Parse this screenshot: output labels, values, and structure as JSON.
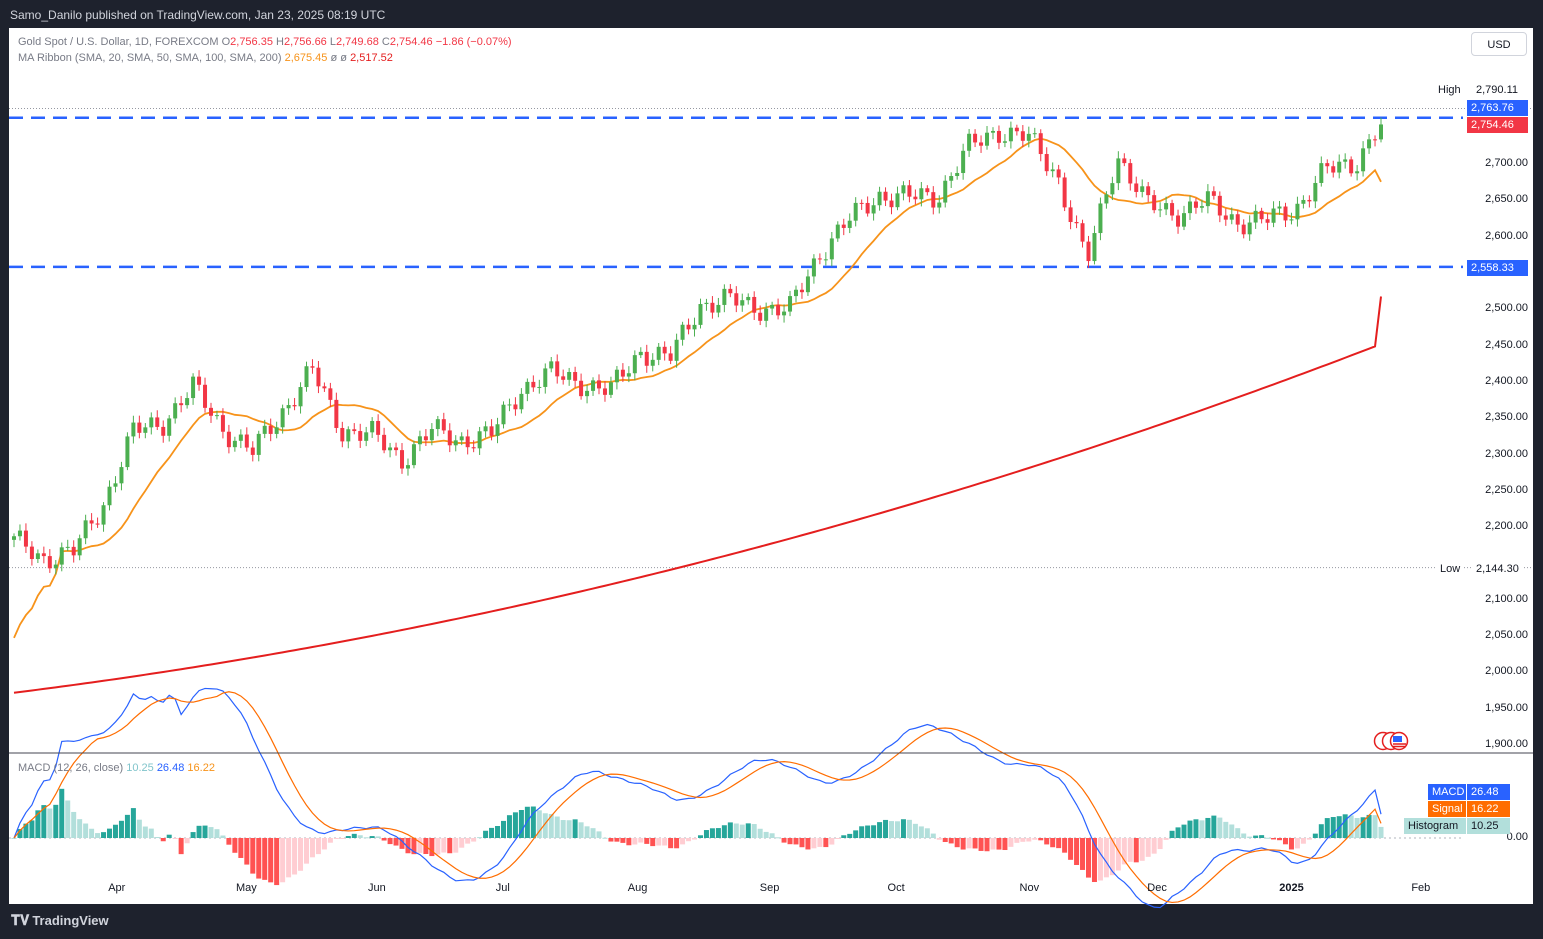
{
  "header": {
    "published_by": "Samo_Danilo published on TradingView.com, Jan 23, 2025 08:19 UTC"
  },
  "legend": {
    "symbol": "Gold Spot / U.S. Dollar, 1D, FOREXCOM",
    "o_label": "O",
    "o_val": "2,756.35",
    "h_label": "H",
    "h_val": "2,756.66",
    "l_label": "L",
    "l_val": "2,749.68",
    "c_label": "C",
    "c_val": "2,754.46",
    "change": "−1.86 (−0.07%)",
    "ma_title": "MA Ribbon (SMA, 20, SMA, 50, SMA, 100, SMA, 200)",
    "ma20": "2,675.45",
    "ma50": "ø",
    "ma100": "ø",
    "ma200": "2,517.52",
    "macd_title": "MACD (12, 26, close)",
    "macd_hist": "10.25",
    "macd_val": "26.48",
    "macd_sig": "16.22"
  },
  "currency_button": "USD",
  "price_axis": {
    "ticks": [
      "2,700.00",
      "2,650.00",
      "2,600.00",
      "2,500.00",
      "2,450.00",
      "2,400.00",
      "2,350.00",
      "2,300.00",
      "2,250.00",
      "2,200.00",
      "2,100.00",
      "2,050.00",
      "2,000.00",
      "1,950.00",
      "1,900.00"
    ],
    "macd_zero": "0.00",
    "high_label": "High",
    "high_val": "2,790.11",
    "low_label": "Low",
    "low_val": "2,144.30",
    "level_upper": "2,763.76",
    "last_price": "2,754.46",
    "level_lower": "2,558.33",
    "macd_tag": "MACD",
    "macd_tag_val": "26.48",
    "signal_tag": "Signal",
    "signal_tag_val": "16.22",
    "hist_tag": "Histogram",
    "hist_tag_val": "10.25"
  },
  "time_axis": [
    "Apr",
    "May",
    "Jun",
    "Jul",
    "Aug",
    "Sep",
    "Oct",
    "Nov",
    "Dec",
    "2025",
    "Feb"
  ],
  "footer": {
    "brand": "TradingView"
  },
  "colors": {
    "bull": "#26a69a",
    "candle_up": "#4caf50",
    "candle_down": "#f23645",
    "sma20": "#f7931a",
    "sma200": "#e41e1e",
    "level": "#2962ff",
    "macd": "#2962ff",
    "signal": "#ff6d00"
  },
  "chart_data": {
    "type": "candlestick",
    "title": "Gold Spot / U.S. Dollar, 1D, FOREXCOM",
    "ylim": [
      1900,
      2800
    ],
    "horizontal_levels": [
      2763.76,
      2558.33
    ],
    "high": 2790.11,
    "low": 2144.3,
    "close_path": [
      {
        "x": "2024-03-08",
        "y": 2180
      },
      {
        "x": "2024-03-15",
        "y": 2158
      },
      {
        "x": "2024-03-22",
        "y": 2165
      },
      {
        "x": "2024-03-29",
        "y": 2233
      },
      {
        "x": "2024-04-05",
        "y": 2330
      },
      {
        "x": "2024-04-12",
        "y": 2345
      },
      {
        "x": "2024-04-19",
        "y": 2392
      },
      {
        "x": "2024-04-26",
        "y": 2337
      },
      {
        "x": "2024-05-03",
        "y": 2302
      },
      {
        "x": "2024-05-10",
        "y": 2360
      },
      {
        "x": "2024-05-17",
        "y": 2415
      },
      {
        "x": "2024-05-24",
        "y": 2334
      },
      {
        "x": "2024-05-31",
        "y": 2327
      },
      {
        "x": "2024-06-07",
        "y": 2294
      },
      {
        "x": "2024-06-14",
        "y": 2332
      },
      {
        "x": "2024-06-21",
        "y": 2321
      },
      {
        "x": "2024-06-28",
        "y": 2326
      },
      {
        "x": "2024-07-05",
        "y": 2391
      },
      {
        "x": "2024-07-12",
        "y": 2411
      },
      {
        "x": "2024-07-19",
        "y": 2400
      },
      {
        "x": "2024-07-26",
        "y": 2386
      },
      {
        "x": "2024-08-02",
        "y": 2443
      },
      {
        "x": "2024-08-09",
        "y": 2431
      },
      {
        "x": "2024-08-16",
        "y": 2507
      },
      {
        "x": "2024-08-23",
        "y": 2512
      },
      {
        "x": "2024-08-30",
        "y": 2503
      },
      {
        "x": "2024-09-06",
        "y": 2497
      },
      {
        "x": "2024-09-13",
        "y": 2577
      },
      {
        "x": "2024-09-20",
        "y": 2621
      },
      {
        "x": "2024-09-27",
        "y": 2658
      },
      {
        "x": "2024-10-04",
        "y": 2653
      },
      {
        "x": "2024-10-11",
        "y": 2657
      },
      {
        "x": "2024-10-18",
        "y": 2721
      },
      {
        "x": "2024-10-25",
        "y": 2747
      },
      {
        "x": "2024-11-01",
        "y": 2736
      },
      {
        "x": "2024-11-08",
        "y": 2685
      },
      {
        "x": "2024-11-15",
        "y": 2563
      },
      {
        "x": "2024-11-22",
        "y": 2715
      },
      {
        "x": "2024-11-29",
        "y": 2643
      },
      {
        "x": "2024-12-06",
        "y": 2633
      },
      {
        "x": "2024-12-13",
        "y": 2648
      },
      {
        "x": "2024-12-20",
        "y": 2622
      },
      {
        "x": "2024-12-27",
        "y": 2621
      },
      {
        "x": "2025-01-03",
        "y": 2640
      },
      {
        "x": "2025-01-10",
        "y": 2690
      },
      {
        "x": "2025-01-17",
        "y": 2703
      },
      {
        "x": "2025-01-23",
        "y": 2754.46
      }
    ],
    "series": [
      {
        "name": "SMA 20",
        "last": 2675.45
      },
      {
        "name": "SMA 200",
        "last": 2517.52
      }
    ],
    "macd": {
      "macd": 26.48,
      "signal": 16.22,
      "histogram": 10.25
    }
  }
}
